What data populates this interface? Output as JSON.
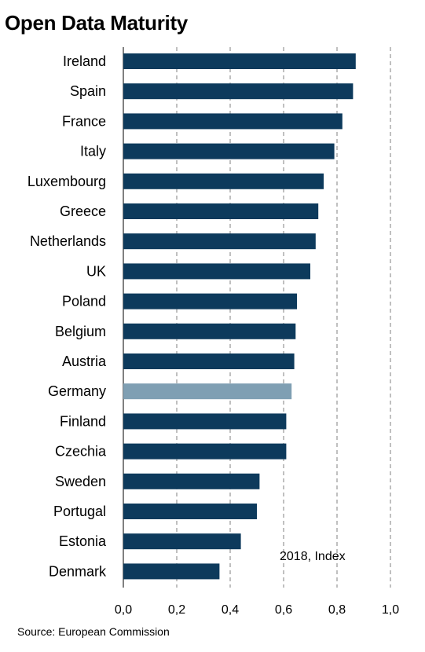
{
  "chart_data": {
    "type": "bar",
    "orientation": "horizontal",
    "title": "Open Data Maturity",
    "note": "2018, Index",
    "source": "Source: European Commission",
    "categories": [
      "Ireland",
      "Spain",
      "France",
      "Italy",
      "Luxembourg",
      "Greece",
      "Netherlands",
      "UK",
      "Poland",
      "Belgium",
      "Austria",
      "Germany",
      "Finland",
      "Czechia",
      "Sweden",
      "Portugal",
      "Estonia",
      "Denmark"
    ],
    "values": [
      0.87,
      0.86,
      0.82,
      0.79,
      0.75,
      0.73,
      0.72,
      0.7,
      0.65,
      0.645,
      0.64,
      0.63,
      0.61,
      0.61,
      0.51,
      0.5,
      0.44,
      0.36
    ],
    "highlight": "Germany",
    "xlim": [
      0,
      1.0
    ],
    "xticks": [
      "0,0",
      "0,2",
      "0,4",
      "0,6",
      "0,8",
      "1,0"
    ],
    "grid": "vertical dashed",
    "colors": {
      "bar": "#0d3a5c",
      "highlight": "#7f9fb3",
      "grid": "#808080"
    }
  }
}
